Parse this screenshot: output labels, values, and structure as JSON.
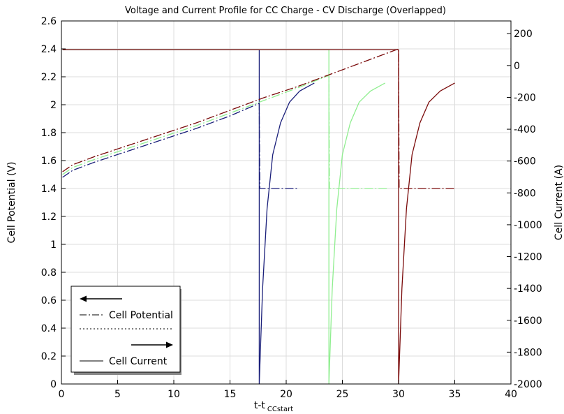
{
  "chart_data": {
    "type": "line",
    "title": "Voltage and Current Profile for CC Charge - CV Discharge (Overlapped)",
    "xlabel": "t-t",
    "xlabel_subscript": "CCstart",
    "ylabel_left": "Cell Potential (V)",
    "ylabel_right": "Cell Current (A)",
    "xlim": [
      0,
      40
    ],
    "ylim_left": [
      0,
      2.6
    ],
    "ylim_right": [
      -2000,
      280
    ],
    "grid": true,
    "x_ticks": [
      "0",
      "5",
      "10",
      "15",
      "20",
      "25",
      "30",
      "35",
      "40"
    ],
    "y_left_ticks": [
      "0",
      "0.2",
      "0.4",
      "0.6",
      "0.8",
      "1",
      "1.2",
      "1.4",
      "1.6",
      "1.8",
      "2",
      "2.2",
      "2.4",
      "2.6"
    ],
    "y_right_ticks": [
      "-2000",
      "-1800",
      "-1600",
      "-1400",
      "-1200",
      "-1000",
      "-800",
      "-600",
      "-400",
      "-200",
      "0",
      "200"
    ],
    "x_tick_values": [
      0,
      5,
      10,
      15,
      20,
      25,
      30,
      35,
      40
    ],
    "y_left_tick_values": [
      0,
      0.2,
      0.4,
      0.6,
      0.8,
      1,
      1.2,
      1.4,
      1.6,
      1.8,
      2,
      2.2,
      2.4,
      2.6
    ],
    "y_right_tick_values": [
      -2000,
      -1800,
      -1600,
      -1400,
      -1200,
      -1000,
      -800,
      -600,
      -400,
      -200,
      0,
      200
    ],
    "series": [
      {
        "color": "#1a1f7a",
        "axis": "left",
        "style": "dashdot",
        "x": [
          0.1,
          1,
          3,
          6,
          9,
          12,
          15,
          17.6,
          17.65,
          18,
          21
        ],
        "y": [
          1.48,
          1.53,
          1.59,
          1.67,
          1.75,
          1.83,
          1.92,
          2.01,
          1.4,
          1.4,
          1.4
        ]
      },
      {
        "color": "#1a1f7a",
        "axis": "right",
        "style": "solid",
        "x": [
          0.1,
          17.6,
          17.6,
          17.6,
          17.9,
          18.3,
          18.8,
          19.5,
          20.3,
          21.2,
          22.5
        ],
        "y": [
          100,
          100,
          100,
          -2000,
          -1400,
          -900,
          -560,
          -360,
          -230,
          -160,
          -110
        ]
      },
      {
        "color": "#90ee90",
        "axis": "left",
        "style": "dashdot",
        "x": [
          0.1,
          1,
          3,
          6,
          9,
          12,
          15,
          18,
          21,
          23.8,
          23.85,
          24.2,
          29
        ],
        "y": [
          1.5,
          1.55,
          1.61,
          1.69,
          1.77,
          1.85,
          1.94,
          2.03,
          2.12,
          2.21,
          1.4,
          1.4,
          1.4
        ]
      },
      {
        "color": "#90ee90",
        "axis": "right",
        "style": "solid",
        "x": [
          0.1,
          23.8,
          23.8,
          23.8,
          24.1,
          24.5,
          25,
          25.7,
          26.5,
          27.5,
          28.8
        ],
        "y": [
          100,
          100,
          100,
          -2000,
          -1400,
          -900,
          -560,
          -360,
          -230,
          -160,
          -110
        ]
      },
      {
        "color": "#7a0a0a",
        "axis": "left",
        "style": "dashdot",
        "x": [
          0.1,
          1,
          3,
          6,
          9,
          12,
          15,
          18,
          21,
          24,
          27,
          30,
          30.05,
          30.4,
          35
        ],
        "y": [
          1.52,
          1.57,
          1.63,
          1.71,
          1.79,
          1.87,
          1.96,
          2.05,
          2.13,
          2.22,
          2.31,
          2.4,
          1.4,
          1.4,
          1.4
        ]
      },
      {
        "color": "#7a0a0a",
        "axis": "right",
        "style": "solid",
        "x": [
          0.1,
          30,
          30,
          30,
          30.3,
          30.7,
          31.2,
          31.9,
          32.7,
          33.7,
          35
        ],
        "y": [
          100,
          100,
          100,
          -2000,
          -1400,
          -900,
          -560,
          -360,
          -230,
          -160,
          -110
        ]
      }
    ],
    "legend": {
      "placement": "bottom-left",
      "entries": [
        {
          "symbol": "arrow-left",
          "text": ""
        },
        {
          "symbol": "dashdot-line",
          "text": "Cell Potential"
        },
        {
          "symbol": "dotted-line",
          "text": ""
        },
        {
          "symbol": "arrow-right",
          "text": ""
        },
        {
          "symbol": "solid-line",
          "text": "Cell Current"
        }
      ]
    }
  }
}
